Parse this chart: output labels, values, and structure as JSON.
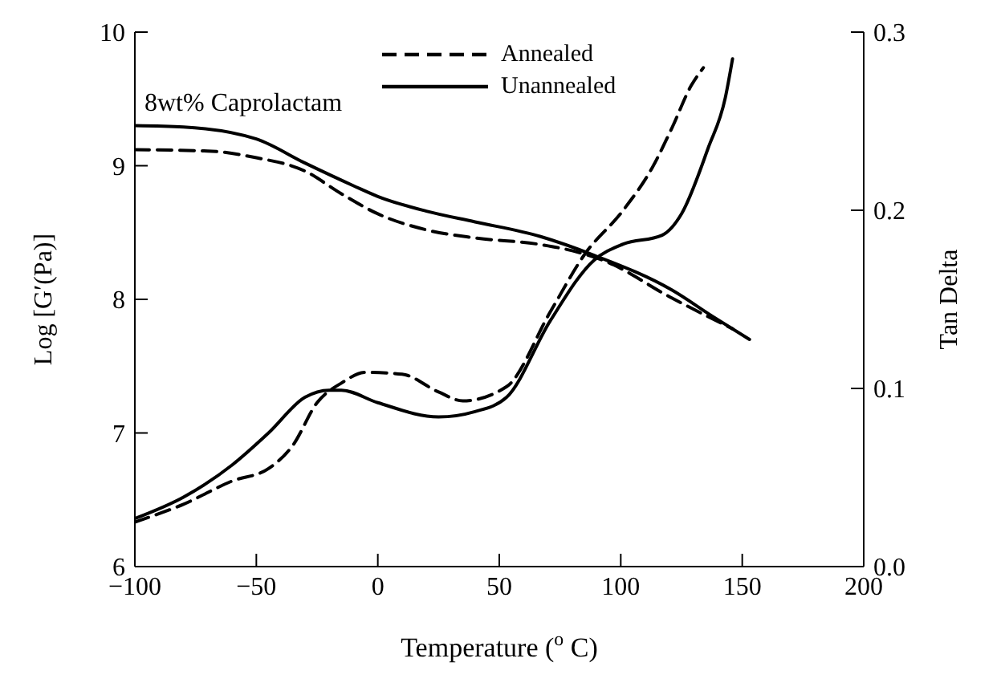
{
  "chart_data": {
    "type": "line",
    "xlabel": "Temperature ($^{o}$C)",
    "ylabel": "Log [G′(Pa)]",
    "y2label": "Tan Delta",
    "annotations": [
      "8wt% Caprolactam"
    ],
    "xlim": [
      -100,
      200
    ],
    "xticks": [
      {
        "value": -100,
        "label": "−100"
      },
      {
        "value": -50,
        "label": "−50"
      },
      0,
      50,
      100,
      150,
      200
    ],
    "ylim": [
      6,
      10
    ],
    "yticks": [
      6,
      7,
      8,
      9,
      10
    ],
    "y2lim": [
      0,
      0.3
    ],
    "y2ticks": [
      {
        "value": 0,
        "label": "0.0"
      },
      0.1,
      0.2,
      0.3
    ],
    "grid": false,
    "legend": "top",
    "marker": "none",
    "series": [
      {
        "name": "Annealed",
        "color": "#000000",
        "line_style": "dashed",
        "x": [
          -100,
          -70,
          -50,
          -30,
          -15,
          0,
          20,
          40,
          67,
          83,
          93,
          121,
          146
        ],
        "values": [
          9.12,
          9.11,
          9.06,
          8.96,
          8.79,
          8.64,
          8.52,
          8.46,
          8.41,
          8.35,
          8.29,
          8.01,
          7.78
        ]
      },
      {
        "name": "Unannealed",
        "color": "#000000",
        "line_style": "solid",
        "x": [
          -100,
          -80,
          -50,
          -30,
          -10,
          0,
          20,
          40,
          67,
          89,
          121,
          138,
          153
        ],
        "values": [
          9.3,
          9.29,
          9.2,
          9.02,
          8.85,
          8.77,
          8.66,
          8.58,
          8.47,
          8.33,
          8.07,
          7.87,
          7.7
        ]
      },
      {
        "color": "#000000",
        "line_style": "dashed",
        "axis": "y2",
        "x": [
          -100,
          -80,
          -60,
          -45,
          -35,
          -25,
          -15,
          -5,
          10,
          25,
          35,
          53,
          71,
          85,
          101,
          113,
          121,
          129,
          134
        ],
        "values": [
          0.025,
          0.035,
          0.048,
          0.055,
          0.068,
          0.092,
          0.103,
          0.109,
          0.108,
          0.098,
          0.093,
          0.101,
          0.143,
          0.175,
          0.2,
          0.224,
          0.246,
          0.27,
          0.28
        ]
      },
      {
        "color": "#000000",
        "line_style": "solid",
        "axis": "y2",
        "x": [
          -100,
          -80,
          -60,
          -45,
          -30,
          -20,
          -15,
          0,
          25,
          40,
          53,
          71,
          89,
          101,
          117,
          125,
          136,
          143,
          146
        ],
        "values": [
          0.027,
          0.039,
          0.057,
          0.075,
          0.095,
          0.099,
          0.099,
          0.092,
          0.084,
          0.087,
          0.095,
          0.138,
          0.172,
          0.181,
          0.186,
          0.198,
          0.235,
          0.263,
          0.285
        ]
      }
    ]
  }
}
